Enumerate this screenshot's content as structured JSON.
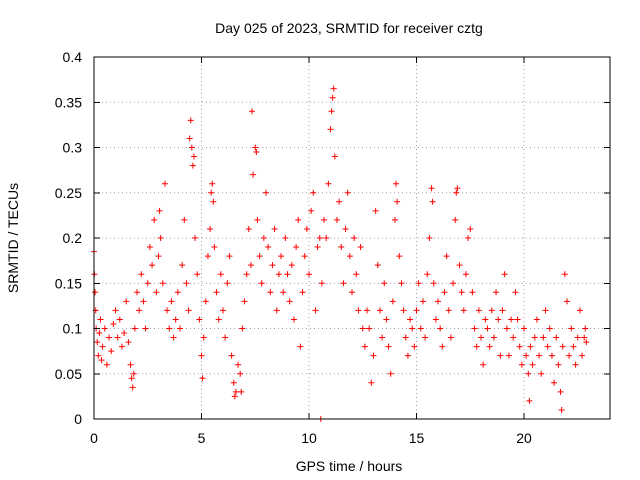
{
  "chart_data": {
    "type": "scatter",
    "title": "Day 025 of 2023, SRMTID for receiver cztg",
    "xlabel": "GPS time / hours",
    "ylabel": "SRMTID / TECUs",
    "xlim": [
      0,
      24
    ],
    "ylim": [
      0,
      0.4
    ],
    "x_ticks": [
      0,
      5,
      10,
      15,
      20
    ],
    "x_tick_labels": [
      "0",
      "5",
      "10",
      "15",
      "20"
    ],
    "y_ticks": [
      0,
      0.05,
      0.1,
      0.15,
      0.2,
      0.25,
      0.3,
      0.35,
      0.4
    ],
    "y_tick_labels": [
      "0",
      "0.05",
      "0.1",
      "0.15",
      "0.2",
      "0.25",
      "0.3",
      "0.35",
      "0.4"
    ],
    "grid": true,
    "marker": "+",
    "series": [
      {
        "name": "SRMTID",
        "color": "#ff0000",
        "points": [
          [
            0.0,
            0.185
          ],
          [
            0.02,
            0.16
          ],
          [
            0.05,
            0.14
          ],
          [
            0.08,
            0.12
          ],
          [
            0.1,
            0.1
          ],
          [
            0.15,
            0.085
          ],
          [
            0.2,
            0.07
          ],
          [
            0.25,
            0.095
          ],
          [
            0.3,
            0.11
          ],
          [
            0.35,
            0.065
          ],
          [
            0.4,
            0.08
          ],
          [
            0.5,
            0.1
          ],
          [
            0.6,
            0.06
          ],
          [
            0.7,
            0.09
          ],
          [
            0.8,
            0.075
          ],
          [
            0.9,
            0.105
          ],
          [
            1.0,
            0.12
          ],
          [
            1.1,
            0.09
          ],
          [
            1.2,
            0.11
          ],
          [
            1.3,
            0.08
          ],
          [
            1.4,
            0.095
          ],
          [
            1.5,
            0.13
          ],
          [
            1.6,
            0.085
          ],
          [
            1.7,
            0.06
          ],
          [
            1.75,
            0.045
          ],
          [
            1.8,
            0.035
          ],
          [
            1.85,
            0.05
          ],
          [
            1.9,
            0.1
          ],
          [
            2.0,
            0.14
          ],
          [
            2.1,
            0.12
          ],
          [
            2.2,
            0.16
          ],
          [
            2.3,
            0.13
          ],
          [
            2.4,
            0.1
          ],
          [
            2.5,
            0.15
          ],
          [
            2.6,
            0.19
          ],
          [
            2.7,
            0.17
          ],
          [
            2.8,
            0.22
          ],
          [
            2.9,
            0.14
          ],
          [
            3.0,
            0.18
          ],
          [
            3.05,
            0.23
          ],
          [
            3.1,
            0.2
          ],
          [
            3.2,
            0.15
          ],
          [
            3.3,
            0.26
          ],
          [
            3.4,
            0.12
          ],
          [
            3.5,
            0.1
          ],
          [
            3.6,
            0.13
          ],
          [
            3.7,
            0.09
          ],
          [
            3.8,
            0.11
          ],
          [
            3.9,
            0.14
          ],
          [
            4.0,
            0.1
          ],
          [
            4.1,
            0.17
          ],
          [
            4.2,
            0.22
          ],
          [
            4.3,
            0.15
          ],
          [
            4.4,
            0.12
          ],
          [
            4.45,
            0.31
          ],
          [
            4.5,
            0.33
          ],
          [
            4.55,
            0.3
          ],
          [
            4.6,
            0.28
          ],
          [
            4.65,
            0.29
          ],
          [
            4.7,
            0.2
          ],
          [
            4.8,
            0.16
          ],
          [
            4.9,
            0.11
          ],
          [
            5.0,
            0.07
          ],
          [
            5.05,
            0.045
          ],
          [
            5.1,
            0.09
          ],
          [
            5.2,
            0.13
          ],
          [
            5.3,
            0.18
          ],
          [
            5.4,
            0.21
          ],
          [
            5.45,
            0.25
          ],
          [
            5.5,
            0.26
          ],
          [
            5.55,
            0.24
          ],
          [
            5.6,
            0.19
          ],
          [
            5.7,
            0.14
          ],
          [
            5.8,
            0.11
          ],
          [
            5.9,
            0.16
          ],
          [
            6.0,
            0.12
          ],
          [
            6.1,
            0.09
          ],
          [
            6.2,
            0.15
          ],
          [
            6.3,
            0.18
          ],
          [
            6.4,
            0.07
          ],
          [
            6.5,
            0.04
          ],
          [
            6.55,
            0.025
          ],
          [
            6.6,
            0.03
          ],
          [
            6.7,
            0.06
          ],
          [
            6.8,
            0.05
          ],
          [
            6.85,
            0.03
          ],
          [
            6.9,
            0.1
          ],
          [
            7.0,
            0.13
          ],
          [
            7.1,
            0.16
          ],
          [
            7.2,
            0.21
          ],
          [
            7.3,
            0.17
          ],
          [
            7.35,
            0.34
          ],
          [
            7.4,
            0.27
          ],
          [
            7.5,
            0.3
          ],
          [
            7.55,
            0.295
          ],
          [
            7.6,
            0.22
          ],
          [
            7.7,
            0.18
          ],
          [
            7.8,
            0.15
          ],
          [
            7.9,
            0.2
          ],
          [
            8.0,
            0.25
          ],
          [
            8.1,
            0.19
          ],
          [
            8.2,
            0.14
          ],
          [
            8.3,
            0.17
          ],
          [
            8.4,
            0.21
          ],
          [
            8.5,
            0.12
          ],
          [
            8.6,
            0.16
          ],
          [
            8.7,
            0.18
          ],
          [
            8.8,
            0.14
          ],
          [
            8.9,
            0.2
          ],
          [
            9.0,
            0.16
          ],
          [
            9.1,
            0.13
          ],
          [
            9.2,
            0.17
          ],
          [
            9.3,
            0.11
          ],
          [
            9.4,
            0.19
          ],
          [
            9.5,
            0.22
          ],
          [
            9.6,
            0.08
          ],
          [
            9.7,
            0.14
          ],
          [
            9.8,
            0.18
          ],
          [
            9.9,
            0.21
          ],
          [
            10.0,
            0.16
          ],
          [
            10.1,
            0.23
          ],
          [
            10.2,
            0.25
          ],
          [
            10.3,
            0.12
          ],
          [
            10.4,
            0.19
          ],
          [
            10.5,
            0.2
          ],
          [
            10.55,
            0.0
          ],
          [
            10.6,
            0.15
          ],
          [
            10.7,
            0.22
          ],
          [
            10.8,
            0.2
          ],
          [
            10.9,
            0.26
          ],
          [
            11.0,
            0.32
          ],
          [
            11.05,
            0.34
          ],
          [
            11.1,
            0.355
          ],
          [
            11.15,
            0.365
          ],
          [
            11.2,
            0.29
          ],
          [
            11.3,
            0.22
          ],
          [
            11.4,
            0.24
          ],
          [
            11.5,
            0.19
          ],
          [
            11.6,
            0.15
          ],
          [
            11.7,
            0.21
          ],
          [
            11.8,
            0.25
          ],
          [
            11.9,
            0.18
          ],
          [
            12.0,
            0.14
          ],
          [
            12.1,
            0.2
          ],
          [
            12.2,
            0.16
          ],
          [
            12.3,
            0.12
          ],
          [
            12.4,
            0.19
          ],
          [
            12.5,
            0.1
          ],
          [
            12.6,
            0.08
          ],
          [
            12.7,
            0.12
          ],
          [
            12.8,
            0.1
          ],
          [
            12.9,
            0.04
          ],
          [
            13.0,
            0.07
          ],
          [
            13.1,
            0.23
          ],
          [
            13.2,
            0.17
          ],
          [
            13.3,
            0.12
          ],
          [
            13.4,
            0.09
          ],
          [
            13.5,
            0.15
          ],
          [
            13.6,
            0.11
          ],
          [
            13.7,
            0.08
          ],
          [
            13.8,
            0.05
          ],
          [
            13.9,
            0.13
          ],
          [
            14.0,
            0.22
          ],
          [
            14.05,
            0.26
          ],
          [
            14.1,
            0.24
          ],
          [
            14.2,
            0.18
          ],
          [
            14.3,
            0.15
          ],
          [
            14.4,
            0.12
          ],
          [
            14.5,
            0.09
          ],
          [
            14.6,
            0.07
          ],
          [
            14.7,
            0.11
          ],
          [
            14.8,
            0.1
          ],
          [
            14.9,
            0.08
          ],
          [
            15.0,
            0.12
          ],
          [
            15.1,
            0.15
          ],
          [
            15.2,
            0.1
          ],
          [
            15.3,
            0.13
          ],
          [
            15.4,
            0.09
          ],
          [
            15.5,
            0.16
          ],
          [
            15.6,
            0.2
          ],
          [
            15.7,
            0.255
          ],
          [
            15.75,
            0.24
          ],
          [
            15.8,
            0.15
          ],
          [
            15.9,
            0.11
          ],
          [
            16.0,
            0.13
          ],
          [
            16.1,
            0.1
          ],
          [
            16.2,
            0.08
          ],
          [
            16.3,
            0.14
          ],
          [
            16.4,
            0.18
          ],
          [
            16.5,
            0.12
          ],
          [
            16.6,
            0.09
          ],
          [
            16.7,
            0.15
          ],
          [
            16.8,
            0.22
          ],
          [
            16.85,
            0.25
          ],
          [
            16.9,
            0.255
          ],
          [
            17.0,
            0.17
          ],
          [
            17.1,
            0.14
          ],
          [
            17.2,
            0.12
          ],
          [
            17.3,
            0.16
          ],
          [
            17.4,
            0.2
          ],
          [
            17.5,
            0.21
          ],
          [
            17.6,
            0.14
          ],
          [
            17.7,
            0.1
          ],
          [
            17.8,
            0.08
          ],
          [
            17.9,
            0.12
          ],
          [
            18.0,
            0.09
          ],
          [
            18.1,
            0.06
          ],
          [
            18.2,
            0.11
          ],
          [
            18.3,
            0.1
          ],
          [
            18.4,
            0.08
          ],
          [
            18.5,
            0.12
          ],
          [
            18.6,
            0.09
          ],
          [
            18.7,
            0.14
          ],
          [
            18.8,
            0.11
          ],
          [
            18.9,
            0.07
          ],
          [
            19.0,
            0.12
          ],
          [
            19.1,
            0.16
          ],
          [
            19.2,
            0.1
          ],
          [
            19.3,
            0.07
          ],
          [
            19.4,
            0.11
          ],
          [
            19.5,
            0.09
          ],
          [
            19.6,
            0.14
          ],
          [
            19.7,
            0.11
          ],
          [
            19.8,
            0.08
          ],
          [
            19.9,
            0.06
          ],
          [
            20.0,
            0.1
          ],
          [
            20.1,
            0.07
          ],
          [
            20.2,
            0.05
          ],
          [
            20.25,
            0.02
          ],
          [
            20.3,
            0.08
          ],
          [
            20.4,
            0.06
          ],
          [
            20.5,
            0.09
          ],
          [
            20.6,
            0.11
          ],
          [
            20.7,
            0.07
          ],
          [
            20.8,
            0.05
          ],
          [
            20.9,
            0.09
          ],
          [
            21.0,
            0.12
          ],
          [
            21.1,
            0.08
          ],
          [
            21.2,
            0.1
          ],
          [
            21.3,
            0.07
          ],
          [
            21.4,
            0.04
          ],
          [
            21.5,
            0.09
          ],
          [
            21.6,
            0.06
          ],
          [
            21.7,
            0.03
          ],
          [
            21.75,
            0.01
          ],
          [
            21.8,
            0.08
          ],
          [
            21.9,
            0.16
          ],
          [
            22.0,
            0.13
          ],
          [
            22.1,
            0.07
          ],
          [
            22.2,
            0.1
          ],
          [
            22.3,
            0.08
          ],
          [
            22.4,
            0.06
          ],
          [
            22.5,
            0.09
          ],
          [
            22.6,
            0.12
          ],
          [
            22.7,
            0.07
          ],
          [
            22.8,
            0.09
          ],
          [
            22.85,
            0.1
          ],
          [
            22.9,
            0.085
          ]
        ]
      }
    ]
  }
}
